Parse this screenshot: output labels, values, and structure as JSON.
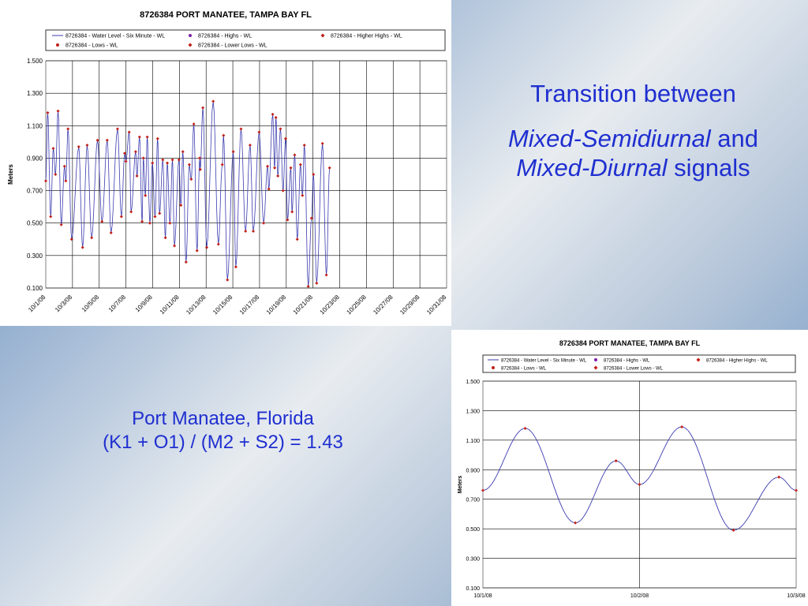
{
  "slide": {
    "heading_line1": "Transition between",
    "heading_italic_1": "Mixed-Semidiurnal",
    "heading_plain_1": " and",
    "heading_italic_2": "Mixed-Diurnal",
    "heading_plain_2": " signals",
    "caption_line1": "Port Manatee, Florida",
    "caption_line2": "(K1 + O1) / (M2 + S2) = 1.43",
    "text_color": "#1f2fd0"
  },
  "chart_data": [
    {
      "type": "line",
      "title": "8726384  PORT MANATEE, TAMPA BAY FL",
      "ylabel": "Meters",
      "xlabel": "",
      "ylim": [
        0.1,
        1.5
      ],
      "grid": true,
      "legend_position": "top",
      "y_ticks": [
        "1.500",
        "1.300",
        "1.100",
        "0.900",
        "0.700",
        "0.500",
        "0.300",
        "0.100"
      ],
      "x_ticks": [
        "10/1/08",
        "10/3/08",
        "10/5/08",
        "10/7/08",
        "10/9/08",
        "10/11/08",
        "10/13/08",
        "10/15/08",
        "10/17/08",
        "10/19/08",
        "10/21/08",
        "10/23/08",
        "10/25/08",
        "10/27/08",
        "10/29/08",
        "10/31/08"
      ],
      "x_range_days": [
        1,
        32
      ],
      "series": [
        {
          "name": "8726384 - Water Level - Six Minute - WL",
          "color": "#3b3bb0",
          "marker": "line"
        },
        {
          "name": "8726384 - Highs - WL",
          "color": "#7a1fa8",
          "marker": "dot"
        },
        {
          "name": "8726384 - Higher Highs - WL",
          "color": "#c0201a",
          "marker": "diamond"
        },
        {
          "name": "8726384 - Lows - WL",
          "color": "#c0201a",
          "marker": "dot"
        },
        {
          "name": "8726384 - Lower Lows - WL",
          "color": "#c0201a",
          "marker": "diamond"
        }
      ],
      "extrema": [
        [
          1.0,
          0.76
        ],
        [
          1.15,
          1.18
        ],
        [
          1.38,
          0.54
        ],
        [
          1.58,
          0.96
        ],
        [
          1.75,
          0.8
        ],
        [
          1.95,
          1.19
        ],
        [
          2.2,
          0.49
        ],
        [
          2.45,
          0.85
        ],
        [
          2.55,
          0.76
        ],
        [
          2.72,
          1.08
        ],
        [
          3.0,
          0.4
        ],
        [
          3.55,
          0.97
        ],
        [
          3.85,
          0.35
        ],
        [
          4.2,
          0.98
        ],
        [
          4.55,
          0.41
        ],
        [
          5.0,
          1.01
        ],
        [
          5.35,
          0.51
        ],
        [
          5.75,
          1.01
        ],
        [
          6.05,
          0.44
        ],
        [
          6.55,
          1.08
        ],
        [
          6.85,
          0.54
        ],
        [
          7.1,
          0.93
        ],
        [
          7.2,
          0.88
        ],
        [
          7.45,
          1.06
        ],
        [
          7.6,
          0.57
        ],
        [
          7.95,
          0.94
        ],
        [
          8.05,
          0.79
        ],
        [
          8.25,
          1.03
        ],
        [
          8.45,
          0.51
        ],
        [
          8.55,
          0.9
        ],
        [
          8.7,
          0.67
        ],
        [
          8.85,
          1.03
        ],
        [
          9.05,
          0.5
        ],
        [
          9.25,
          0.87
        ],
        [
          9.45,
          0.54
        ],
        [
          9.65,
          1.02
        ],
        [
          9.8,
          0.56
        ],
        [
          10.05,
          0.89
        ],
        [
          10.25,
          0.41
        ],
        [
          10.4,
          0.87
        ],
        [
          10.6,
          0.5
        ],
        [
          10.8,
          0.89
        ],
        [
          10.95,
          0.36
        ],
        [
          11.3,
          0.89
        ],
        [
          11.45,
          0.61
        ],
        [
          11.6,
          0.94
        ],
        [
          11.85,
          0.26
        ],
        [
          12.1,
          0.86
        ],
        [
          12.25,
          0.77
        ],
        [
          12.45,
          1.11
        ],
        [
          12.7,
          0.33
        ],
        [
          12.9,
          0.9
        ],
        [
          12.95,
          0.83
        ],
        [
          13.15,
          1.21
        ],
        [
          13.45,
          0.35
        ],
        [
          13.95,
          1.25
        ],
        [
          14.35,
          0.37
        ],
        [
          14.65,
          0.86
        ],
        [
          14.75,
          1.04
        ],
        [
          15.05,
          0.15
        ],
        [
          15.5,
          0.94
        ],
        [
          15.7,
          0.23
        ],
        [
          16.1,
          1.08
        ],
        [
          16.45,
          0.45
        ],
        [
          16.8,
          0.98
        ],
        [
          17.05,
          0.45
        ],
        [
          17.5,
          1.06
        ],
        [
          17.85,
          0.5
        ],
        [
          18.15,
          0.85
        ],
        [
          18.25,
          0.71
        ],
        [
          18.55,
          1.17
        ],
        [
          18.7,
          0.84
        ],
        [
          18.8,
          1.15
        ],
        [
          18.95,
          0.79
        ],
        [
          19.15,
          1.08
        ],
        [
          19.35,
          0.7
        ],
        [
          19.55,
          1.02
        ],
        [
          19.7,
          0.52
        ],
        [
          19.95,
          0.84
        ],
        [
          20.05,
          0.57
        ],
        [
          20.25,
          0.92
        ],
        [
          20.45,
          0.4
        ],
        [
          20.7,
          0.86
        ],
        [
          20.85,
          0.67
        ],
        [
          21.0,
          0.98
        ],
        [
          21.3,
          0.11
        ],
        [
          21.55,
          0.53
        ],
        [
          21.7,
          0.8
        ],
        [
          21.95,
          0.13
        ],
        [
          22.4,
          0.99
        ],
        [
          22.7,
          0.18
        ],
        [
          22.95,
          0.84
        ]
      ]
    },
    {
      "type": "line",
      "title": "8726384  PORT MANATEE, TAMPA BAY FL",
      "ylabel": "Meters",
      "xlabel": "",
      "ylim": [
        0.1,
        1.5
      ],
      "grid": true,
      "legend_position": "top",
      "y_ticks": [
        "1.500",
        "1.300",
        "1.100",
        "0.900",
        "0.700",
        "0.500",
        "0.300",
        "0.100"
      ],
      "x_ticks": [
        "10/1/08",
        "10/2/08",
        "10/3/08"
      ],
      "x_range_days": [
        0,
        2
      ],
      "series": [
        {
          "name": "8726384 - Water Level - Six Minute - WL",
          "color": "#3b3bb0",
          "marker": "line"
        },
        {
          "name": "8726384 - Highs - WL",
          "color": "#7a1fa8",
          "marker": "dot"
        },
        {
          "name": "8726384 - Higher Highs - WL",
          "color": "#c0201a",
          "marker": "diamond"
        },
        {
          "name": "8726384 - Lows - WL",
          "color": "#c0201a",
          "marker": "dot"
        },
        {
          "name": "8726384 - Lower Lows - WL",
          "color": "#c0201a",
          "marker": "diamond"
        }
      ],
      "extrema": [
        [
          0.0,
          0.76
        ],
        [
          0.27,
          1.18
        ],
        [
          0.59,
          0.54
        ],
        [
          0.85,
          0.96
        ],
        [
          1.0,
          0.8
        ],
        [
          1.27,
          1.19
        ],
        [
          1.6,
          0.49
        ],
        [
          1.89,
          0.85
        ],
        [
          2.0,
          0.76
        ]
      ]
    }
  ]
}
